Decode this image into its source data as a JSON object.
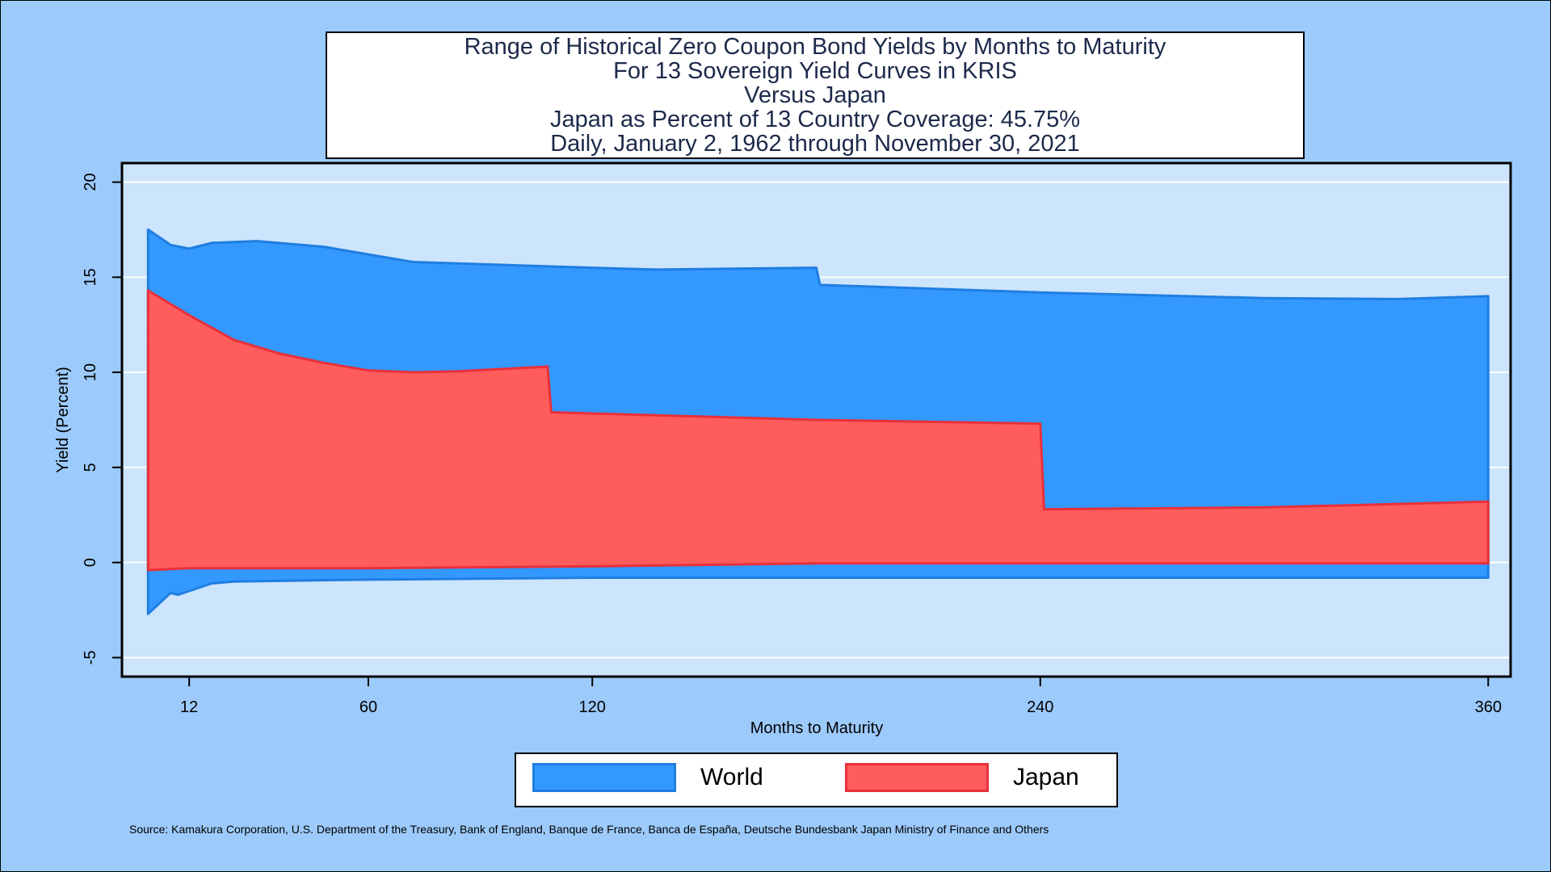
{
  "title_lines": [
    "Range of Historical Zero Coupon Bond Yields by Months to Maturity",
    "For 13 Sovereign Yield Curves in KRIS",
    "Versus Japan",
    "Japan as Percent of 13 Country Coverage: 45.75%",
    "Daily, January 2, 1962 through November 30, 2021"
  ],
  "source": "Source: Kamakura Corporation, U.S. Department of the Treasury, Bank of England, Banque de France, Banca de España, Deutsche Bundesbank Japan Ministry of Finance and Others",
  "legend": {
    "world_label": "World",
    "japan_label": "Japan"
  },
  "colors": {
    "background": "#9ccafb",
    "plot_background": "#cce4fc",
    "world_fill": "#3399ff",
    "world_line": "#1f7ee0",
    "japan_fill": "#ff5c5c",
    "japan_line": "#e8303a"
  },
  "chart_data": {
    "type": "area",
    "xlabel": "Months to Maturity",
    "ylabel": "Yield (Percent)",
    "xlim": [
      -6,
      366
    ],
    "ylim": [
      -6,
      21
    ],
    "xticks": [
      12,
      60,
      120,
      240,
      360
    ],
    "yticks": [
      -5,
      0,
      5,
      10,
      15,
      20
    ],
    "grid": true,
    "legend_position": "bottom",
    "series": [
      {
        "name": "World",
        "upper": [
          [
            1,
            17.5
          ],
          [
            7,
            16.7
          ],
          [
            12,
            16.5
          ],
          [
            18,
            16.8
          ],
          [
            30,
            16.9
          ],
          [
            48,
            16.6
          ],
          [
            60,
            16.2
          ],
          [
            72,
            15.8
          ],
          [
            120,
            15.5
          ],
          [
            137,
            15.4
          ],
          [
            180,
            15.5
          ],
          [
            181,
            14.6
          ],
          [
            240,
            14.2
          ],
          [
            300,
            13.9
          ],
          [
            336,
            13.85
          ],
          [
            360,
            14.0
          ]
        ],
        "lower": [
          [
            1,
            -2.7
          ],
          [
            7,
            -1.6
          ],
          [
            9,
            -1.7
          ],
          [
            12,
            -1.5
          ],
          [
            18,
            -1.1
          ],
          [
            24,
            -1.0
          ],
          [
            60,
            -0.9
          ],
          [
            120,
            -0.8
          ],
          [
            360,
            -0.8
          ]
        ]
      },
      {
        "name": "Japan",
        "upper": [
          [
            1,
            14.3
          ],
          [
            12,
            13.0
          ],
          [
            24,
            11.7
          ],
          [
            36,
            11.0
          ],
          [
            48,
            10.5
          ],
          [
            60,
            10.1
          ],
          [
            72,
            10.0
          ],
          [
            84,
            10.05
          ],
          [
            108,
            10.3
          ],
          [
            109,
            7.9
          ],
          [
            180,
            7.5
          ],
          [
            240,
            7.3
          ],
          [
            241,
            2.8
          ],
          [
            300,
            2.9
          ],
          [
            360,
            3.2
          ]
        ],
        "lower": [
          [
            1,
            -0.4
          ],
          [
            12,
            -0.3
          ],
          [
            60,
            -0.3
          ],
          [
            120,
            -0.2
          ],
          [
            180,
            -0.05
          ],
          [
            360,
            -0.05
          ]
        ]
      }
    ]
  }
}
